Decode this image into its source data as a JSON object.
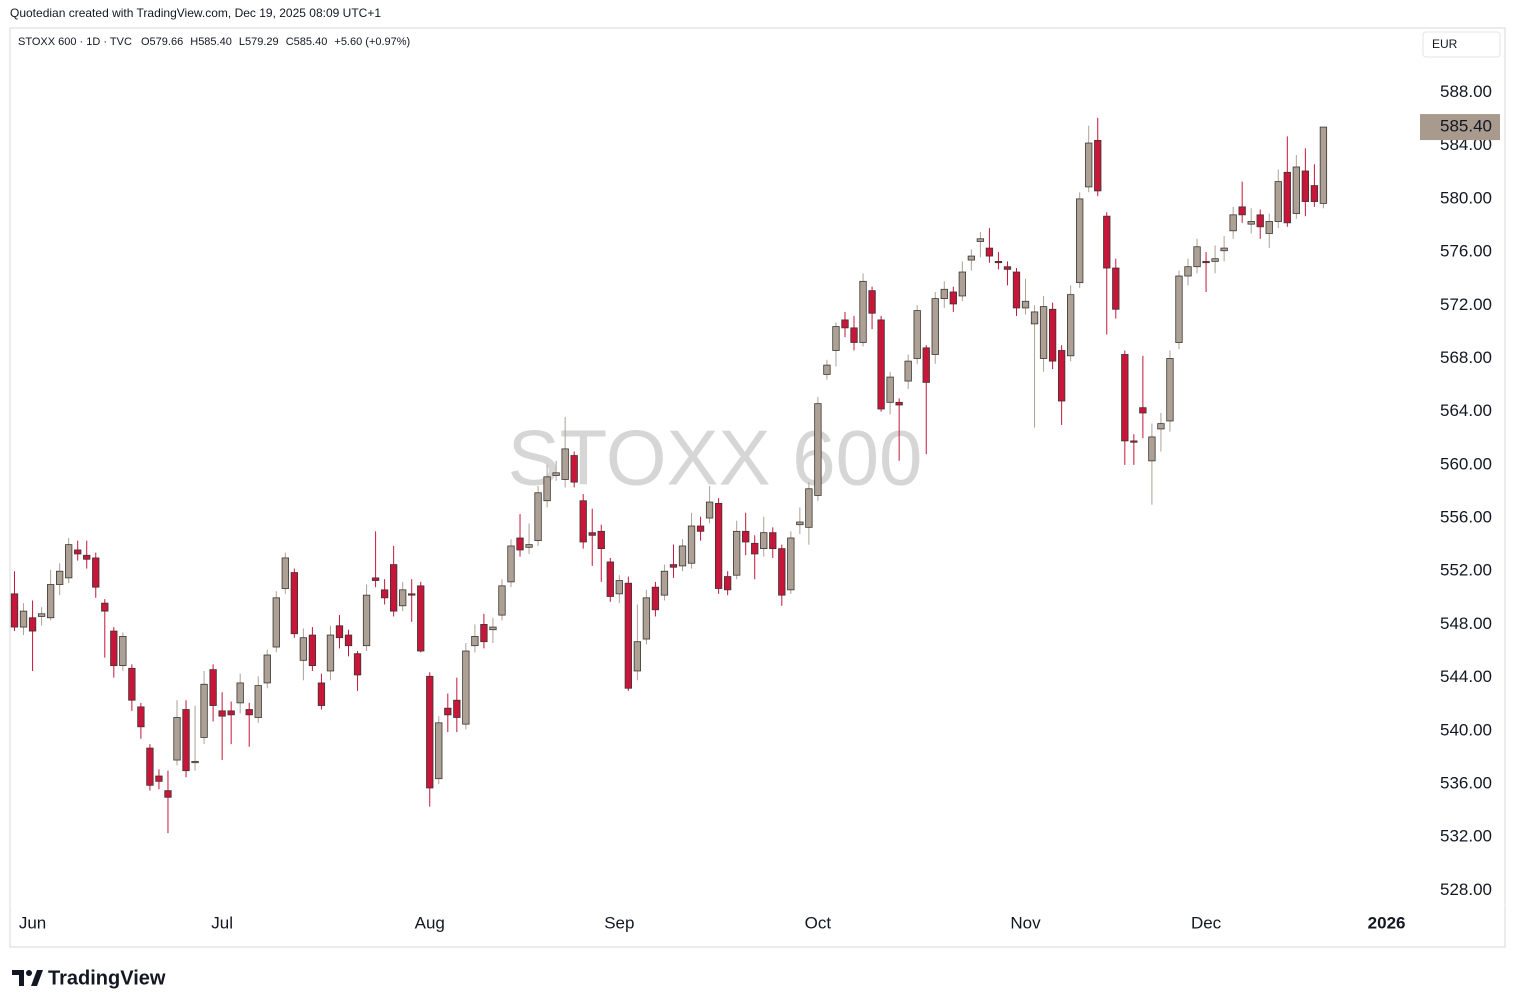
{
  "chart_data": {
    "type": "candlestick",
    "credit": "Quotedian created with TradingView.com, Dec 19, 2025 08:09 UTC+1",
    "legend": {
      "symbol": "STOXX 600 · 1D · TVC",
      "open": "O579.66",
      "high": "H585.40",
      "low": "L579.29",
      "close": "C585.40",
      "change": "+5.60 (+0.97%)"
    },
    "currency": "EUR",
    "watermark": "STOXX 600",
    "brand": "TradingView",
    "last_price_label": "585.40",
    "up_color": "#ada195",
    "down_color": "#c8153a",
    "label_color": "#a89b8e",
    "open": [
      550.3,
      547.8,
      548.5,
      548.6,
      548.5,
      551.0,
      551.5,
      553.6,
      553.2,
      553.0,
      549.6,
      547.5,
      544.9,
      544.7,
      541.8,
      538.7,
      536.6,
      535.5,
      537.8,
      541.6,
      537.6,
      539.5,
      544.6,
      541.5,
      541.5,
      542.1,
      541.6,
      541.0,
      543.6,
      546.3,
      550.7,
      551.9,
      545.3,
      547.2,
      543.6,
      544.5,
      547.9,
      547.2,
      545.8,
      546.4,
      551.5,
      550.6,
      552.5,
      549.4,
      550.3,
      550.9,
      544.1,
      536.4,
      541.7,
      542.3,
      540.5,
      546.4,
      548.0,
      547.6,
      548.7,
      551.2,
      554.5,
      553.8,
      554.3,
      557.3,
      559.2,
      558.9,
      560.7,
      557.3,
      554.9,
      555.0,
      552.7,
      550.3,
      551.1,
      544.5,
      546.9,
      550.8,
      550.2,
      552.5,
      552.4,
      552.6,
      555.4,
      556.0,
      557.1,
      551.6,
      551.7,
      555.0,
      554.1,
      553.7,
      554.9,
      553.7,
      550.6,
      555.5,
      555.3,
      557.7,
      566.8,
      568.6,
      570.9,
      570.3,
      569.2,
      573.1,
      570.9,
      564.7,
      564.7,
      566.3,
      568.0,
      568.8,
      568.3,
      572.5,
      573.0,
      572.7,
      575.4,
      576.8,
      576.3,
      575.3,
      574.9,
      574.5,
      571.8,
      570.6,
      568.0,
      571.7,
      568.6,
      568.2,
      573.7,
      580.9,
      584.4,
      578.7,
      574.8,
      568.3,
      561.8,
      564.3,
      560.3,
      562.7,
      563.3,
      569.2,
      574.2,
      574.9,
      575.3,
      575.3,
      576.1,
      577.6,
      579.4,
      578.1,
      578.8,
      577.4,
      578.3,
      582.0,
      578.9,
      582.1,
      581.0,
      579.66
    ],
    "high": [
      552.0,
      549.6,
      549.8,
      549.3,
      552.1,
      552.6,
      554.5,
      554.3,
      554.3,
      553.4,
      549.9,
      547.8,
      547.4,
      545.0,
      542.1,
      539.0,
      537.1,
      537.0,
      542.3,
      542.3,
      541.9,
      544.5,
      545.0,
      542.9,
      542.2,
      544.3,
      542.1,
      544.1,
      546.1,
      550.5,
      553.4,
      552.2,
      547.7,
      547.8,
      544.3,
      547.9,
      548.7,
      547.6,
      546.0,
      551.0,
      555.0,
      551.4,
      553.9,
      551.2,
      551.4,
      551.2,
      544.4,
      541.1,
      542.8,
      544.0,
      546.6,
      548.0,
      548.8,
      548.5,
      551.4,
      554.4,
      556.3,
      555.6,
      558.4,
      560.0,
      560.3,
      563.6,
      561.0,
      557.8,
      556.7,
      555.5,
      553.0,
      551.7,
      551.6,
      549.5,
      550.6,
      551.2,
      552.5,
      554.0,
      554.4,
      556.4,
      556.1,
      558.4,
      557.5,
      552.0,
      555.8,
      556.4,
      554.7,
      556.1,
      555.3,
      554.0,
      555.0,
      556.8,
      558.7,
      565.1,
      567.9,
      570.7,
      571.5,
      571.2,
      574.4,
      573.4,
      571.2,
      567.0,
      565.0,
      568.3,
      572.0,
      569.0,
      573.0,
      573.8,
      573.4,
      575.3,
      576.2,
      577.5,
      577.8,
      576.0,
      575.3,
      574.8,
      574.0,
      572.0,
      572.7,
      572.2,
      569.0,
      573.5,
      580.5,
      585.5,
      586.1,
      579.0,
      575.5,
      568.6,
      562.3,
      568.2,
      563.1,
      563.9,
      568.6,
      574.6,
      575.5,
      577.0,
      576.0,
      576.5,
      577.2,
      579.4,
      581.3,
      579.3,
      579.2,
      578.9,
      582.2,
      584.7,
      583.3,
      583.8,
      582.6,
      585.4
    ],
    "low": [
      547.5,
      547.2,
      544.5,
      547.9,
      548.3,
      550.2,
      551.1,
      552.8,
      552.2,
      550.0,
      545.5,
      544.0,
      544.5,
      541.5,
      539.4,
      535.5,
      535.6,
      532.3,
      537.4,
      536.5,
      537.0,
      539.0,
      540.7,
      537.8,
      539.0,
      541.3,
      538.8,
      540.6,
      543.2,
      545.9,
      550.3,
      547.0,
      543.8,
      544.5,
      541.6,
      543.8,
      546.2,
      545.6,
      543.0,
      546.0,
      550.8,
      549.5,
      548.6,
      549.0,
      548.2,
      545.9,
      534.3,
      536.0,
      539.9,
      539.9,
      540.1,
      545.9,
      546.2,
      546.6,
      548.3,
      550.8,
      553.1,
      553.3,
      553.9,
      556.8,
      558.8,
      558.3,
      558.3,
      553.7,
      552.4,
      551.2,
      549.7,
      549.6,
      543.0,
      543.8,
      546.5,
      548.6,
      549.8,
      551.5,
      552.0,
      552.2,
      554.3,
      555.6,
      550.3,
      550.2,
      551.4,
      553.2,
      551.4,
      553.1,
      553.0,
      549.4,
      550.3,
      554.8,
      554.0,
      557.3,
      566.4,
      567.4,
      569.6,
      568.6,
      568.9,
      570.2,
      564.0,
      563.8,
      560.3,
      565.7,
      567.6,
      560.8,
      567.6,
      571.8,
      571.5,
      572.3,
      574.6,
      575.6,
      575.2,
      574.7,
      573.5,
      571.2,
      571.3,
      562.8,
      567.0,
      567.2,
      563.0,
      567.8,
      573.3,
      580.5,
      580.2,
      569.8,
      571.0,
      560.0,
      560.0,
      562.0,
      557.0,
      561.0,
      562.5,
      568.7,
      573.5,
      574.4,
      573.0,
      574.4,
      575.3,
      577.0,
      578.2,
      577.4,
      577.0,
      576.3,
      577.8,
      577.9,
      578.5,
      578.7,
      579.4,
      579.29
    ],
    "close": [
      547.8,
      549.0,
      547.5,
      548.8,
      551.0,
      552.0,
      554.0,
      553.3,
      552.9,
      550.8,
      549.0,
      544.9,
      547.1,
      542.3,
      540.3,
      535.9,
      536.2,
      535.0,
      541.0,
      537.0,
      537.7,
      543.5,
      541.9,
      541.1,
      541.2,
      543.6,
      541.2,
      543.4,
      545.7,
      550.0,
      553.0,
      547.3,
      547.0,
      544.9,
      541.9,
      547.2,
      547.0,
      546.4,
      544.2,
      550.2,
      551.3,
      550.0,
      549.0,
      550.6,
      550.2,
      546.0,
      535.7,
      540.6,
      541.2,
      541.0,
      546.0,
      547.1,
      546.7,
      547.8,
      550.9,
      553.9,
      553.6,
      554.0,
      557.9,
      559.1,
      559.4,
      561.2,
      558.7,
      554.2,
      554.7,
      553.7,
      550.1,
      551.3,
      543.2,
      546.7,
      550.0,
      549.1,
      552.0,
      552.3,
      553.9,
      555.4,
      555.0,
      557.2,
      550.7,
      550.6,
      555.0,
      554.2,
      553.3,
      554.9,
      553.7,
      550.2,
      554.5,
      555.7,
      558.2,
      564.6,
      567.5,
      570.4,
      570.3,
      569.2,
      573.8,
      571.4,
      564.2,
      566.6,
      564.5,
      567.8,
      571.6,
      566.2,
      572.5,
      573.2,
      572.1,
      574.5,
      575.7,
      577.0,
      575.7,
      575.2,
      574.7,
      571.8,
      572.3,
      571.5,
      571.9,
      567.8,
      564.8,
      572.8,
      580.0,
      584.2,
      580.6,
      574.8,
      571.7,
      561.8,
      561.7,
      563.9,
      562.1,
      563.1,
      568.0,
      574.2,
      574.9,
      576.4,
      575.2,
      575.5,
      576.3,
      578.8,
      578.8,
      578.3,
      577.9,
      578.3,
      581.3,
      578.2,
      582.4,
      579.8,
      579.8,
      585.4
    ],
    "xlim": [
      -0.5,
      155.7
    ],
    "xticks": [
      {
        "value": 2,
        "label": "Jun"
      },
      {
        "value": 23,
        "label": "Jul"
      },
      {
        "value": 46,
        "label": "Aug"
      },
      {
        "value": 67,
        "label": "Sep"
      },
      {
        "value": 89,
        "label": "Oct"
      },
      {
        "value": 112,
        "label": "Nov"
      },
      {
        "value": 132,
        "label": "Dec"
      },
      {
        "value": 152,
        "label": "2026"
      }
    ],
    "ylim": [
      526.9,
      592.7
    ],
    "yticks": [
      {
        "value": 528,
        "label": "528.00"
      },
      {
        "value": 532,
        "label": "532.00"
      },
      {
        "value": 536,
        "label": "536.00"
      },
      {
        "value": 540,
        "label": "540.00"
      },
      {
        "value": 544,
        "label": "544.00"
      },
      {
        "value": 548,
        "label": "548.00"
      },
      {
        "value": 552,
        "label": "552.00"
      },
      {
        "value": 556,
        "label": "556.00"
      },
      {
        "value": 560,
        "label": "560.00"
      },
      {
        "value": 564,
        "label": "564.00"
      },
      {
        "value": 568,
        "label": "568.00"
      },
      {
        "value": 572,
        "label": "572.00"
      },
      {
        "value": 576,
        "label": "576.00"
      },
      {
        "value": 580,
        "label": "580.00"
      },
      {
        "value": 584,
        "label": "584.00"
      },
      {
        "value": 588,
        "label": "588.00"
      }
    ],
    "grid": false
  }
}
